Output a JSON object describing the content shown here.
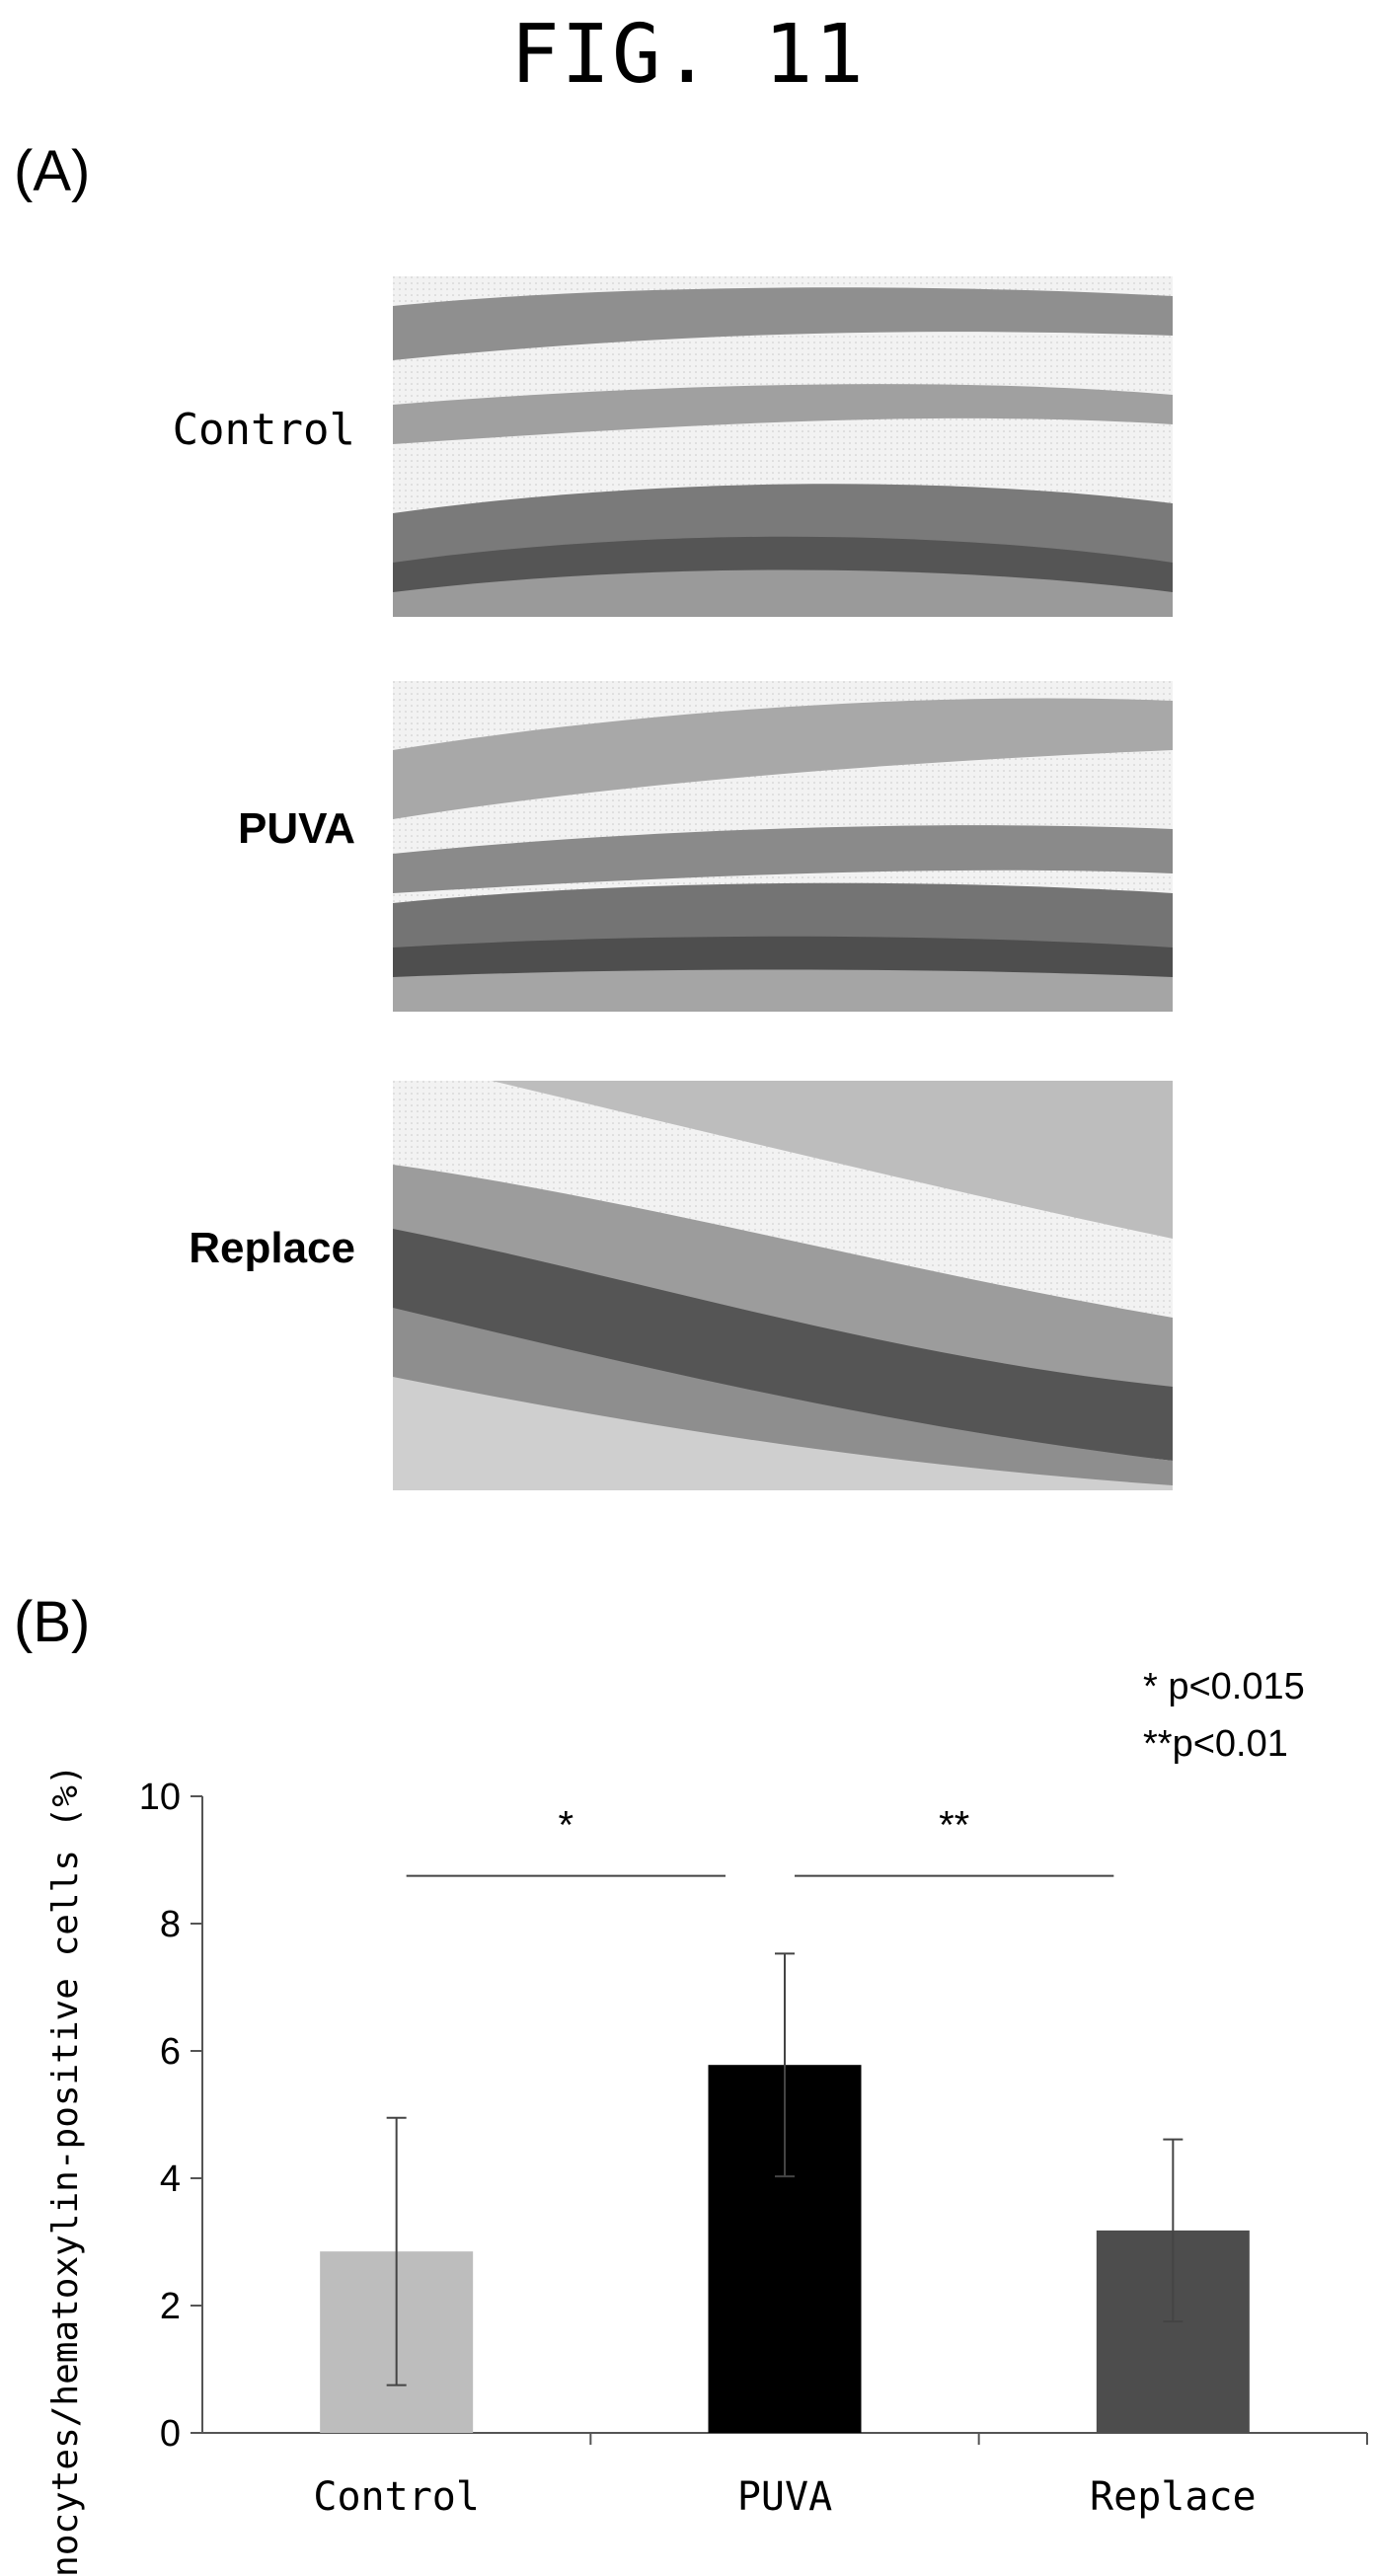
{
  "figure": {
    "title": "FIG. 11",
    "panel_a_label": "(A)",
    "panel_b_label": "(B)"
  },
  "panel_a": {
    "rows": [
      {
        "label": "Control",
        "weight": "normal"
      },
      {
        "label": "PUVA",
        "weight": "bold"
      },
      {
        "label": "Replace",
        "weight": "bold"
      }
    ]
  },
  "chart_data": {
    "type": "bar",
    "categories": [
      "Control",
      "PUVA",
      "Replace"
    ],
    "values": [
      2.85,
      5.78,
      3.18
    ],
    "error": [
      2.1,
      1.75,
      1.43
    ],
    "colors": [
      "#bdbdbd",
      "#000000",
      "#4d4d4d"
    ],
    "ylabel": "Melanocytes/hematoxylin-positive cells (%)",
    "ylim": [
      0,
      10
    ],
    "yticks": [
      0,
      2,
      4,
      6,
      8,
      10
    ],
    "grid": false,
    "significance": [
      {
        "from": "Control",
        "to": "PUVA",
        "label": "*"
      },
      {
        "from": "PUVA",
        "to": "Replace",
        "label": "**"
      }
    ],
    "notes": [
      "* p<0.015",
      "**p<0.01"
    ]
  }
}
